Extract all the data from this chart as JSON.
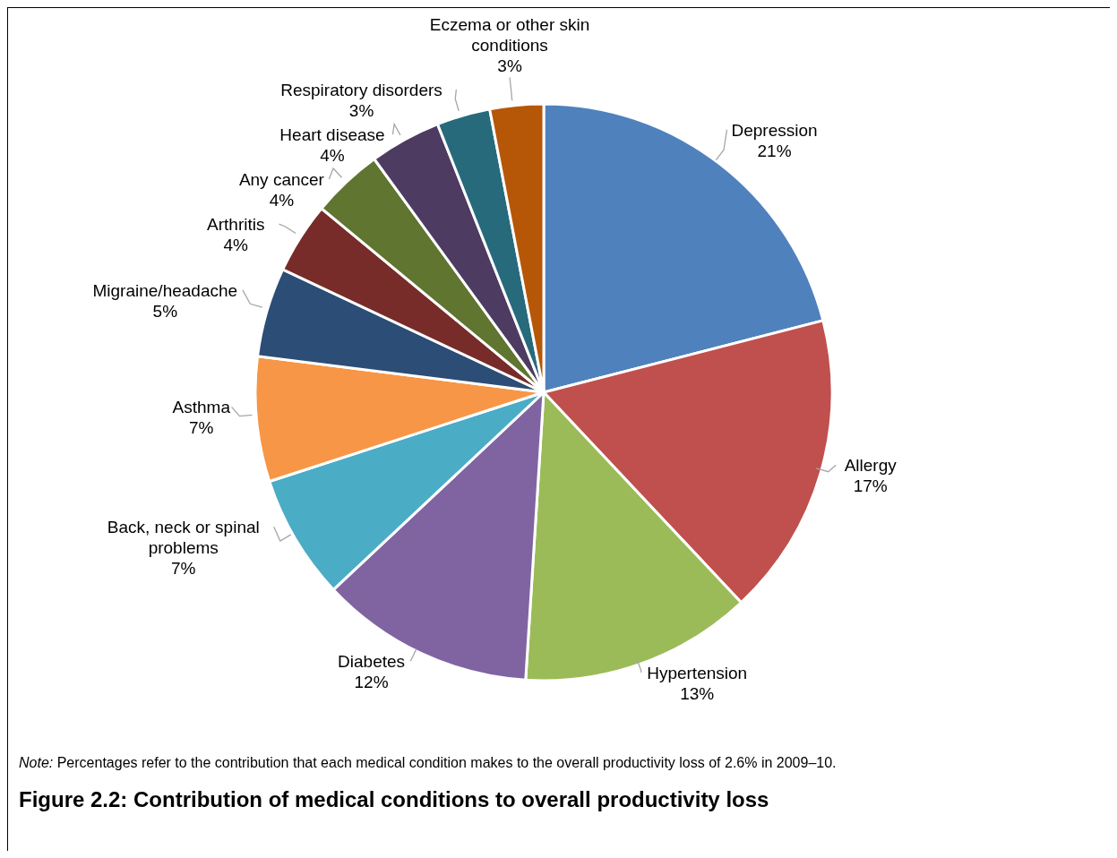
{
  "chart_data": {
    "type": "pie",
    "title": "Figure 2.2: Contribution of medical conditions to overall productivity loss",
    "categories": [
      "Depression",
      "Allergy",
      "Hypertension",
      "Diabetes",
      "Back, neck or spinal problems",
      "Asthma",
      "Migraine/headache",
      "Arthritis",
      "Any cancer",
      "Heart disease",
      "Respiratory disorders",
      "Eczema or other skin conditions"
    ],
    "values": [
      21,
      17,
      13,
      12,
      7,
      7,
      5,
      4,
      4,
      4,
      3,
      3
    ],
    "colors": [
      "#4f81bd",
      "#c0504d",
      "#9bbb59",
      "#8064a2",
      "#4bacc6",
      "#f79646",
      "#2c4d75",
      "#772c2a",
      "#5f7530",
      "#4d3b62",
      "#276a7c",
      "#b65708"
    ],
    "value_labels": [
      "21%",
      "17%",
      "13%",
      "12%",
      "7%",
      "7%",
      "5%",
      "4%",
      "4%",
      "4%",
      "3%",
      "3%"
    ],
    "annotations": [
      "Note: Percentages refer to the contribution that each medical condition makes to the overall productivity loss of 2.6% in 2009–10."
    ]
  }
}
